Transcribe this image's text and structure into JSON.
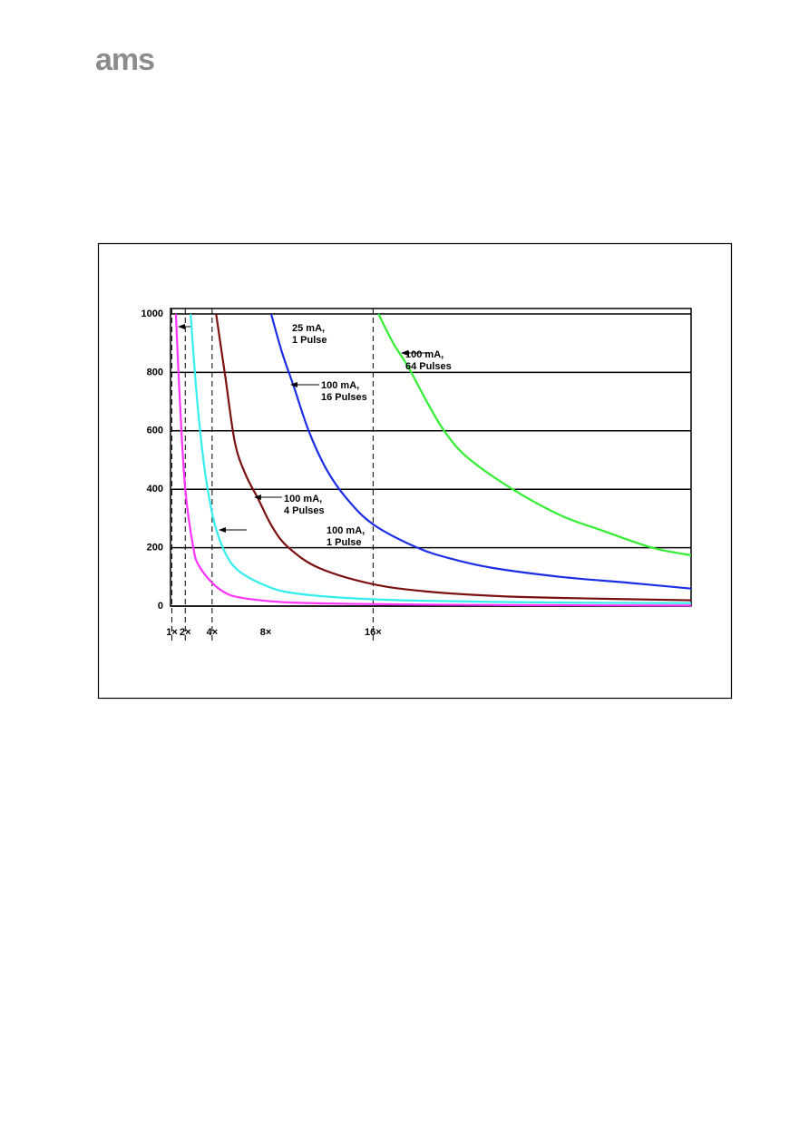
{
  "header": {
    "logo": "ams"
  },
  "chart_data": {
    "type": "line",
    "xlim": [
      0.9,
      39.7
    ],
    "ylim": [
      0,
      1000
    ],
    "xticks": [
      {
        "value": 1,
        "label": "1×"
      },
      {
        "value": 2,
        "label": "2×"
      },
      {
        "value": 4,
        "label": "4×"
      },
      {
        "value": 8,
        "label": "8×"
      },
      {
        "value": 16,
        "label": "16×"
      }
    ],
    "yticks": [
      0,
      200,
      400,
      600,
      800,
      1000
    ],
    "xguides": [
      1,
      2,
      4,
      16
    ],
    "grid": true,
    "series": [
      {
        "color": "#ff33ff",
        "x": [
          1.3,
          1.6,
          2,
          2.6,
          3,
          4,
          5,
          6,
          8,
          10,
          14,
          20,
          30,
          39.7
        ],
        "values": [
          1000,
          700,
          400,
          200,
          140,
          80,
          45,
          30,
          18,
          12,
          8,
          5,
          3,
          2
        ]
      },
      {
        "color": "#33eeee",
        "x": [
          2.4,
          2.8,
          3.2,
          3.6,
          4.2,
          5,
          6,
          8,
          10,
          14,
          20,
          30,
          39.7
        ],
        "values": [
          1000,
          750,
          560,
          420,
          280,
          180,
          120,
          70,
          45,
          28,
          18,
          12,
          10
        ]
      },
      {
        "color": "#7a1010",
        "x": [
          4.3,
          5,
          5.7,
          6.5,
          7.4,
          8.5,
          9.7,
          12,
          16,
          20,
          25,
          30,
          39.7
        ],
        "values": [
          1000,
          780,
          560,
          450,
          370,
          270,
          200,
          130,
          75,
          50,
          35,
          28,
          20
        ]
      },
      {
        "color": "#1a2ee6",
        "x": [
          8.4,
          9.2,
          10.1,
          11.2,
          12.5,
          14,
          16,
          19.3,
          22,
          25,
          30,
          35,
          39.7
        ],
        "values": [
          1000,
          870,
          750,
          600,
          470,
          370,
          280,
          200,
          160,
          130,
          100,
          80,
          60
        ]
      },
      {
        "color": "#33ee33",
        "x": [
          16.4,
          17.5,
          18.6,
          20,
          21.3,
          23,
          26.4,
          30,
          33,
          36.8,
          39.7
        ],
        "values": [
          1000,
          900,
          820,
          700,
          600,
          510,
          400,
          310,
          260,
          200,
          174
        ]
      }
    ],
    "annotations": [
      {
        "text": [
          "25 mA,",
          "1 Pulse"
        ]
      },
      {
        "text": [
          "100 mA,",
          "64 Pulses"
        ]
      },
      {
        "text": [
          "100 mA,",
          "16 Pulses"
        ]
      },
      {
        "text": [
          "100 mA,",
          "4 Pulses"
        ]
      },
      {
        "text": [
          "100 mA,",
          "1 Pulse"
        ]
      }
    ]
  }
}
